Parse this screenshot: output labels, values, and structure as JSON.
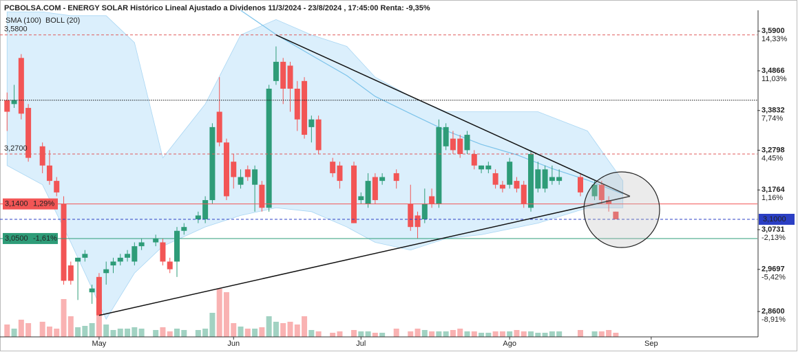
{
  "chart_data": {
    "type": "candlestick",
    "title": "PCBOLSA.COM - ENERGY SOLAR Histórico Lineal Ajustado a Dividenos 11/3/2024 - 23/8/2024 , 17:45:00 Renta: -9,35%",
    "legend": [
      {
        "name": "SMA (100)",
        "color": "#7cc3ea"
      },
      {
        "name": "BOLL (20)",
        "color": "#c4c4c4"
      }
    ],
    "up_color": "#2e9c78",
    "down_color": "#f25555",
    "candles": {
      "x": [
        0,
        1,
        2,
        3,
        5,
        6,
        7,
        8,
        9,
        10,
        11,
        12,
        13,
        14,
        15,
        16,
        17,
        18,
        19,
        21,
        22,
        23,
        24,
        25,
        27,
        28,
        29,
        30,
        31,
        32,
        33,
        34,
        35,
        36,
        37,
        38,
        39,
        40,
        41,
        42,
        43,
        44,
        46,
        47,
        49,
        50,
        51,
        52,
        53,
        55,
        57,
        58,
        59,
        60,
        61,
        62,
        63,
        64,
        65,
        66,
        67,
        68,
        69,
        70,
        71,
        72,
        73,
        74,
        75,
        76,
        77,
        78,
        81,
        83,
        84,
        85,
        86
      ],
      "open": [
        3.41,
        3.4,
        3.52,
        3.39,
        3.29,
        3.24,
        3.2,
        3.14,
        2.98,
        2.99,
        3.0,
        2.91,
        2.95,
        2.96,
        2.98,
        2.99,
        3.0,
        2.99,
        3.03,
        3.04,
        3.04,
        2.99,
        2.99,
        3.07,
        3.1,
        3.1,
        3.15,
        3.38,
        3.3,
        3.25,
        3.19,
        3.23,
        3.19,
        3.19,
        3.13,
        3.46,
        3.51,
        3.5,
        3.44,
        3.46,
        3.34,
        3.36,
        3.25,
        3.24,
        3.24,
        3.15,
        3.14,
        3.21,
        3.2,
        3.22,
        3.14,
        3.11,
        3.1,
        3.16,
        3.14,
        3.29,
        3.31,
        3.31,
        3.28,
        3.27,
        3.23,
        3.23,
        3.22,
        3.19,
        3.19,
        3.2,
        3.19,
        3.13,
        3.18,
        3.18,
        3.2,
        3.2,
        3.21,
        3.16,
        3.19,
        3.15,
        3.12
      ],
      "high": [
        3.43,
        3.45,
        3.53,
        3.4,
        3.3,
        3.28,
        3.21,
        3.16,
        2.99,
        3.0,
        3.02,
        2.93,
        2.96,
        2.99,
        3.0,
        3.01,
        3.02,
        3.04,
        3.05,
        3.06,
        3.05,
        3.0,
        3.08,
        3.09,
        3.12,
        3.16,
        3.35,
        3.47,
        3.31,
        3.27,
        3.23,
        3.24,
        3.24,
        3.2,
        3.45,
        3.55,
        3.52,
        3.51,
        3.46,
        3.47,
        3.37,
        3.37,
        3.26,
        3.25,
        3.25,
        3.17,
        3.22,
        3.22,
        3.22,
        3.23,
        3.19,
        3.12,
        3.18,
        3.18,
        3.36,
        3.35,
        3.33,
        3.32,
        3.33,
        3.28,
        3.24,
        3.25,
        3.23,
        3.2,
        3.26,
        3.21,
        3.2,
        3.28,
        3.25,
        3.24,
        3.24,
        3.23,
        3.22,
        3.2,
        3.2,
        3.16,
        3.12
      ],
      "low": [
        3.33,
        3.39,
        3.36,
        3.25,
        3.22,
        3.19,
        3.16,
        2.93,
        2.93,
        2.89,
        2.99,
        2.88,
        2.85,
        2.93,
        2.96,
        2.98,
        2.99,
        2.98,
        3.02,
        3.03,
        2.98,
        2.96,
        2.95,
        3.06,
        3.09,
        3.09,
        3.14,
        3.29,
        3.15,
        3.18,
        3.18,
        3.2,
        3.12,
        3.12,
        3.12,
        3.45,
        3.4,
        3.38,
        3.33,
        3.31,
        3.3,
        3.27,
        3.21,
        3.18,
        3.09,
        3.14,
        3.13,
        3.14,
        3.19,
        3.18,
        3.07,
        3.05,
        3.09,
        3.13,
        3.13,
        3.28,
        3.27,
        3.26,
        3.27,
        3.23,
        3.22,
        3.22,
        3.18,
        3.17,
        3.18,
        3.17,
        3.13,
        3.12,
        3.17,
        3.17,
        3.19,
        3.19,
        3.16,
        3.15,
        3.14,
        3.12,
        3.1
      ],
      "close": [
        3.38,
        3.41,
        3.375,
        3.26,
        3.24,
        3.2,
        3.17,
        2.94,
        2.94,
        3.0,
        3.01,
        2.92,
        2.85,
        2.97,
        2.99,
        3.0,
        3.01,
        3.03,
        3.04,
        3.05,
        2.99,
        2.97,
        3.07,
        3.08,
        3.11,
        3.15,
        3.34,
        3.3,
        3.16,
        3.21,
        3.21,
        3.21,
        3.23,
        3.13,
        3.44,
        3.51,
        3.44,
        3.44,
        3.36,
        3.32,
        3.36,
        3.28,
        3.22,
        3.2,
        3.09,
        3.16,
        3.2,
        3.15,
        3.21,
        3.2,
        3.08,
        3.08,
        3.14,
        3.14,
        3.34,
        3.34,
        3.28,
        3.27,
        3.32,
        3.24,
        3.24,
        3.24,
        3.19,
        3.18,
        3.25,
        3.18,
        3.14,
        3.27,
        3.23,
        3.23,
        3.21,
        3.21,
        3.17,
        3.19,
        3.15,
        3.14,
        3.1
      ],
      "volume": [
        18,
        12,
        25,
        20,
        22,
        15,
        12,
        55,
        30,
        14,
        16,
        20,
        60,
        18,
        10,
        12,
        12,
        14,
        12,
        10,
        14,
        8,
        12,
        10,
        10,
        12,
        35,
        70,
        65,
        20,
        15,
        12,
        12,
        14,
        30,
        22,
        20,
        22,
        18,
        30,
        10,
        8,
        6,
        8,
        10,
        8,
        8,
        6,
        6,
        12,
        8,
        12,
        10,
        8,
        8,
        8,
        10,
        12,
        8,
        8,
        6,
        6,
        8,
        8,
        8,
        10,
        8,
        8,
        6,
        6,
        8,
        8,
        10,
        8,
        8,
        10,
        6
      ]
    },
    "bollinger": {
      "x": [
        0,
        5,
        9,
        14,
        18,
        22,
        28,
        33,
        38,
        43,
        48,
        52,
        57,
        62,
        67,
        75,
        82,
        87
      ],
      "upper": [
        3.64,
        3.64,
        3.63,
        3.63,
        3.56,
        3.26,
        3.4,
        3.58,
        3.62,
        3.58,
        3.55,
        3.47,
        3.42,
        3.38,
        3.38,
        3.38,
        3.33,
        3.2
      ],
      "lower": [
        3.24,
        3.19,
        3.04,
        2.84,
        2.96,
        3.03,
        3.08,
        3.11,
        3.13,
        3.12,
        3.08,
        3.04,
        3.02,
        3.05,
        3.06,
        3.09,
        3.13,
        3.13
      ]
    },
    "sma": {
      "x": [
        33,
        38,
        43,
        48,
        52,
        57,
        62,
        67,
        72,
        77,
        82,
        87
      ],
      "values": [
        3.644,
        3.581,
        3.527,
        3.474,
        3.42,
        3.375,
        3.331,
        3.295,
        3.268,
        3.232,
        3.202,
        3.166
      ]
    },
    "trendlines": [
      {
        "x": [
          38,
          88
        ],
        "y": [
          3.58,
          3.16
        ]
      },
      {
        "x": [
          13,
          88
        ],
        "y": [
          2.85,
          3.16
        ]
      }
    ],
    "levels": [
      {
        "value": 3.58,
        "label": "3,5800",
        "color": "#e05a5a",
        "style": "dashed"
      },
      {
        "value": 3.41,
        "color": "#111111",
        "style": "dotted"
      },
      {
        "value": 3.27,
        "label": "3,2700",
        "color": "#e05a5a",
        "style": "dashed"
      },
      {
        "value": 3.14,
        "label": "3,1400",
        "change": "1,29%",
        "color": "#f25555",
        "style": "solid",
        "box": true
      },
      {
        "value": 3.1,
        "label": "3,1000",
        "color": "#2b3fc4",
        "style": "dashed",
        "side": "right",
        "box": true
      },
      {
        "value": 3.05,
        "label": "3,0500",
        "change": "-1,61%",
        "color": "#2e9c78",
        "style": "solid",
        "box": true
      }
    ],
    "xlim": [
      -1,
      106
    ],
    "ylim": [
      2.794,
      3.644
    ],
    "xticks": [
      {
        "value": 13,
        "label": "May"
      },
      {
        "value": 32,
        "label": "Jun"
      },
      {
        "value": 50,
        "label": "Jul"
      },
      {
        "value": 71,
        "label": "Ago"
      },
      {
        "value": 91,
        "label": "Sep"
      }
    ],
    "yticks": [
      {
        "value": 3.59,
        "label": "3,5900"
      },
      {
        "value": 3.4866,
        "label": "3,4866"
      },
      {
        "value": 3.3832,
        "label": "3,3832"
      },
      {
        "value": 3.2798,
        "label": "3,2798"
      },
      {
        "value": 3.1764,
        "label": "3,1764"
      },
      {
        "value": 3.0731,
        "label": "3,0731"
      },
      {
        "value": 2.9697,
        "label": "2,9697"
      },
      {
        "value": 2.86,
        "label": "2,8600"
      }
    ],
    "ytick_change_labels": [
      "14,33%",
      "11,03%",
      "7,74%",
      "4,45%",
      "1,16%",
      "-2,13%",
      "-5,42%",
      "-8,91%"
    ]
  }
}
